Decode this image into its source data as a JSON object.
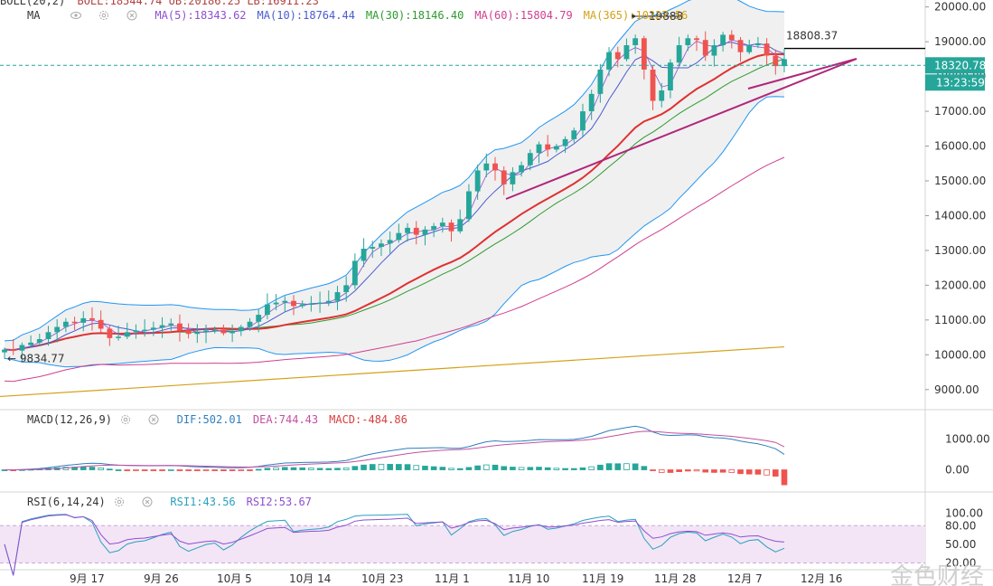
{
  "legend_bar": {
    "boll_label": "BOLL(20,2)",
    "boll_values": "BOLL:18544.74 UB:20186.25 LB:16911.23"
  },
  "ma_legend": {
    "label": "MA",
    "items": [
      {
        "text": "MA(5):18343.62",
        "color": "#8e4fd1"
      },
      {
        "text": "MA(10):18764.44",
        "color": "#4b5bd1"
      },
      {
        "text": "MA(30):18146.40",
        "color": "#2e9a2e"
      },
      {
        "text": "MA(60):15804.79",
        "color": "#cf3f8f"
      },
      {
        "text": "MA(365):10227.56",
        "color": "#d4a017"
      }
    ]
  },
  "macd_legend": {
    "label": "MACD(12,26,9)",
    "items": [
      {
        "text": "DIF:502.01",
        "color": "#2e7fbf"
      },
      {
        "text": "DEA:744.43",
        "color": "#c44fa0"
      },
      {
        "text": "MACD:-484.86",
        "color": "#d83d3d"
      }
    ]
  },
  "rsi_legend": {
    "label": "RSI(6,14,24)",
    "items": [
      {
        "text": "RSI1:43.56",
        "color": "#2aa0bf"
      },
      {
        "text": "RSI2:53.67",
        "color": "#8e4fd1"
      }
    ]
  },
  "price_tags": {
    "last_price": "18320.78",
    "countdown": "13:23:59",
    "resistance": "18808.37",
    "high_label": "19888",
    "low_label": "9834.77"
  },
  "watermark": "金色财经",
  "colors": {
    "up": "#26a69a",
    "down": "#ef5350",
    "boll_band": "#2196f3",
    "trendline": "#b0267a",
    "ma365": "#d4a017"
  },
  "chart_data": {
    "type": "candlestick",
    "x_tick_labels": [
      "9月 17",
      "9月 26",
      "10月 5",
      "10月 14",
      "10月 23",
      "11月 1",
      "11月 10",
      "11月 19",
      "11月 28",
      "12月 7",
      "12月 16"
    ],
    "price_axis": {
      "ticks": [
        "20000.00",
        "19000.00",
        "18000.00",
        "17000.00",
        "16000.00",
        "15000.00",
        "14000.00",
        "13000.00",
        "12000.00",
        "11000.00",
        "10000.00",
        "9000.00"
      ],
      "ylim": [
        8500,
        20200
      ]
    },
    "macd_axis": {
      "ticks": [
        "1000.00",
        "0.00"
      ],
      "ylim": [
        -600,
        1450
      ]
    },
    "rsi_axis": {
      "ticks": [
        "100.00",
        "80.00",
        "50.00",
        "20.00"
      ],
      "ylim": [
        12,
        108
      ]
    },
    "last_price": 18320.78,
    "resistance_level": 18808.37,
    "period_high": 19888,
    "period_low": 9834.77,
    "closes": [
      10150,
      10120,
      10280,
      10350,
      10450,
      10650,
      10800,
      10950,
      10920,
      11050,
      11000,
      10750,
      10480,
      10520,
      10650,
      10700,
      10720,
      10780,
      10850,
      10900,
      10700,
      10600,
      10650,
      10700,
      10720,
      10620,
      10680,
      10800,
      10950,
      11150,
      11450,
      11500,
      11550,
      11400,
      11450,
      11480,
      11500,
      11550,
      11800,
      12000,
      12700,
      13050,
      13100,
      13200,
      13300,
      13500,
      13650,
      13450,
      13600,
      13700,
      13800,
      13550,
      13900,
      14700,
      15300,
      15500,
      15300,
      14900,
      15250,
      15450,
      15800,
      16050,
      15900,
      16000,
      16200,
      16450,
      17000,
      17500,
      18200,
      18700,
      18500,
      18900,
      19100,
      18200,
      17300,
      17600,
      18400,
      18900,
      19100,
      19050,
      18600,
      18900,
      19200,
      19050,
      18700,
      18900,
      18950,
      18600,
      18300,
      18500
    ],
    "ma365": [
      8800,
      9600,
      10227.56
    ],
    "rsi1_last": 43.56,
    "rsi2_last": 53.67,
    "macd_dif_last": 502.01,
    "macd_dea_last": 744.43,
    "macd_hist_last": -484.86
  }
}
